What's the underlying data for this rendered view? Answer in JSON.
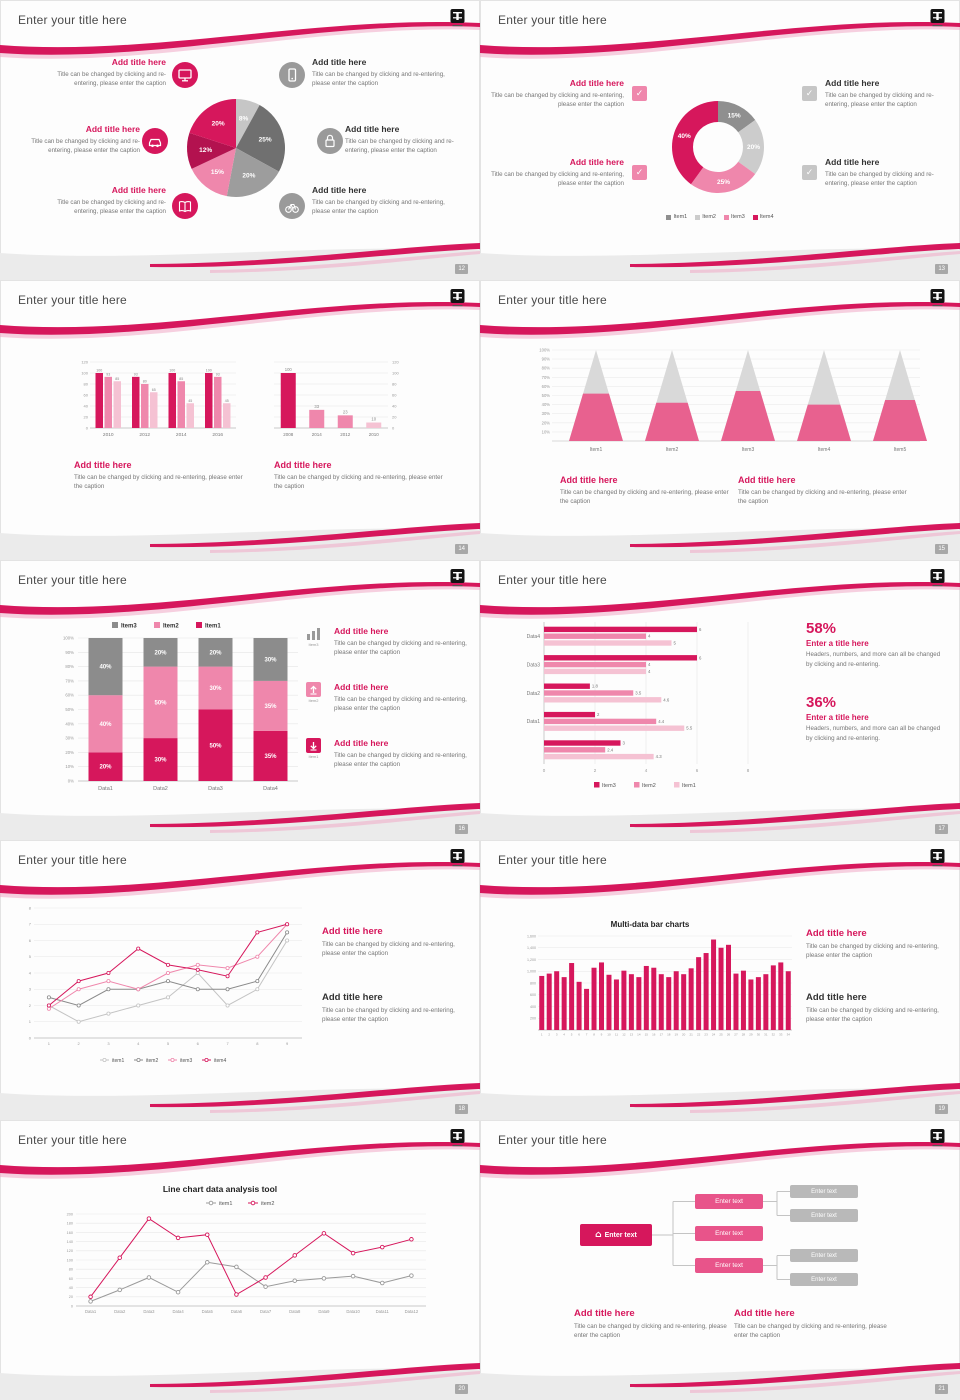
{
  "common": {
    "slide_title": "Enter your title here",
    "caption": "Title can be changed by clicking and re-entering, please enter the caption",
    "check": "✓",
    "home": "⌂"
  },
  "slides": [
    {
      "page": "12",
      "callouts": [
        {
          "title": "Add title here"
        },
        {
          "title": "Add title here"
        },
        {
          "title": "Add title here"
        },
        {
          "title": "Add title here"
        },
        {
          "title": "Add title here"
        },
        {
          "title": "Add title here"
        }
      ]
    },
    {
      "page": "13",
      "callouts": [
        {
          "title": "Add title here"
        },
        {
          "title": "Add title here"
        },
        {
          "title": "Add title here"
        },
        {
          "title": "Add title here"
        }
      ]
    },
    {
      "page": "14",
      "blocks": [
        {
          "title": "Add title here"
        },
        {
          "title": "Add title here"
        }
      ]
    },
    {
      "page": "15",
      "blocks": [
        {
          "title": "Add title here"
        },
        {
          "title": "Add title here"
        }
      ]
    },
    {
      "page": "16",
      "items": [
        {
          "tag": "Item3",
          "title": "Add title here"
        },
        {
          "tag": "Item2",
          "title": "Add title here"
        },
        {
          "tag": "Item1",
          "title": "Add title here"
        }
      ]
    },
    {
      "page": "17",
      "stats": [
        {
          "value": "58%",
          "title": "Enter a title here",
          "caption": "Headers, numbers, and more can all be changed by clicking and re-entering."
        },
        {
          "value": "36%",
          "title": "Enter a title here",
          "caption": "Headers, numbers, and more can all be changed by clicking and re-entering."
        }
      ]
    },
    {
      "page": "18",
      "blocks": [
        {
          "title": "Add title here"
        },
        {
          "title": "Add title here"
        }
      ]
    },
    {
      "page": "19",
      "blocks": [
        {
          "title": "Add title here"
        },
        {
          "title": "Add title here"
        }
      ]
    },
    {
      "page": "20"
    },
    {
      "page": "21",
      "diagram": {
        "root": "Enter text",
        "children": [
          "Enter text",
          "Enter text",
          "Enter text"
        ],
        "leaves": [
          "Enter text",
          "Enter text",
          "Enter text",
          "Enter text"
        ]
      },
      "blocks": [
        {
          "title": "Add title here"
        },
        {
          "title": "Add title here"
        }
      ]
    }
  ],
  "chart_data": [
    {
      "id": "pie12",
      "type": "pie",
      "values": [
        8,
        25,
        20,
        15,
        12,
        20
      ],
      "labels": [
        "8%",
        "25%",
        "20%",
        "15%",
        "12%",
        "20%"
      ],
      "colors": [
        "#c6c6c6",
        "#707070",
        "#9d9d9d",
        "#ef87ac",
        "#b3124f",
        "#d6175c"
      ]
    },
    {
      "id": "donut13",
      "type": "pie",
      "subtype": "donut",
      "values": [
        15,
        20,
        25,
        40
      ],
      "labels": [
        "15%",
        "20%",
        "25%",
        "40%"
      ],
      "colors": [
        "#8f8f8f",
        "#cccccc",
        "#ef87ac",
        "#d6175c"
      ],
      "legend": [
        {
          "label": "Item1",
          "color": "#8f8f8f"
        },
        {
          "label": "Item2",
          "color": "#cccccc"
        },
        {
          "label": "Item3",
          "color": "#ef87ac"
        },
        {
          "label": "Item4",
          "color": "#d6175c"
        }
      ]
    },
    {
      "id": "bars14a",
      "type": "bar",
      "categories": [
        "2010",
        "2012",
        "2014",
        "2016"
      ],
      "series": [
        {
          "color": "#d6175c",
          "values": [
            100,
            93,
            100,
            100
          ]
        },
        {
          "color": "#ef87ac",
          "values": [
            93,
            80,
            85,
            93
          ]
        },
        {
          "color": "#f5c2d3",
          "values": [
            85,
            65,
            45,
            45
          ]
        }
      ],
      "ylim": [
        0,
        120
      ],
      "yticks": [
        0,
        20,
        40,
        60,
        80,
        100,
        120
      ]
    },
    {
      "id": "bars14b",
      "type": "bar",
      "categories": [
        "2008",
        "2014",
        "2012",
        "2010"
      ],
      "values": [
        100,
        33,
        23,
        10
      ],
      "colors": [
        "#d6175c",
        "#ef87ac",
        "#ef87ac",
        "#f5c2d3"
      ],
      "ylim": [
        0,
        120
      ],
      "yticks": [
        0,
        20,
        40,
        60,
        80,
        100,
        120
      ],
      "axis_side": "right"
    },
    {
      "id": "cones15",
      "type": "cone",
      "categories": [
        "Item1",
        "Item2",
        "Item3",
        "Item4",
        "Item5"
      ],
      "values": [
        52,
        42,
        55,
        40,
        45
      ],
      "ylim": [
        0,
        100
      ],
      "yticks": [
        "10%",
        "20%",
        "30%",
        "40%",
        "50%",
        "60%",
        "70%",
        "80%",
        "90%",
        "100%"
      ],
      "color_bottom": "#e8618f",
      "color_top": "#d9d9d9"
    },
    {
      "id": "stack16",
      "type": "bar",
      "subtype": "stacked100",
      "categories": [
        "Data1",
        "Data2",
        "Data3",
        "Data4"
      ],
      "series": [
        {
          "name": "Item1",
          "color": "#d6175c",
          "values": [
            20,
            30,
            50,
            35
          ]
        },
        {
          "name": "Item2",
          "color": "#ef87ac",
          "values": [
            40,
            50,
            30,
            35
          ]
        },
        {
          "name": "Item3",
          "color": "#8c8c8c",
          "values": [
            40,
            20,
            20,
            30
          ]
        }
      ],
      "legend": [
        "Item3",
        "Item2",
        "Item1"
      ],
      "ylim": [
        0,
        100
      ]
    },
    {
      "id": "hbar17",
      "type": "bar",
      "subtype": "horizontal",
      "categories": [
        "Data4",
        "Data3",
        "Data2",
        "Data1",
        ""
      ],
      "series": [
        {
          "name": "Item3",
          "color": "#d6175c",
          "values": [
            6,
            6,
            1.8,
            2,
            3
          ]
        },
        {
          "name": "Item2",
          "color": "#ef87ac",
          "values": [
            4,
            4,
            3.5,
            4.4,
            2.4
          ]
        },
        {
          "name": "Item1",
          "color": "#f5c2d3",
          "values": [
            5,
            4,
            4.6,
            5.5,
            4.3
          ]
        }
      ],
      "xlim": [
        0,
        8
      ],
      "xticks": [
        0,
        2,
        4,
        6,
        8
      ],
      "legend": [
        "Item3",
        "Item2",
        "Item1"
      ]
    },
    {
      "id": "line18",
      "type": "line",
      "x": [
        "1",
        "2",
        "3",
        "4",
        "5",
        "6",
        "7",
        "8",
        "9"
      ],
      "series": [
        {
          "name": "item1",
          "color": "#c4c4c4",
          "values": [
            2,
            1,
            1.5,
            2,
            2.5,
            4,
            2,
            3,
            6
          ]
        },
        {
          "name": "item2",
          "color": "#8a8a8a",
          "values": [
            2.5,
            2,
            3,
            3,
            3.5,
            3,
            3,
            3.5,
            6.5
          ]
        },
        {
          "name": "item3",
          "color": "#ef87ac",
          "values": [
            1.8,
            3,
            3.5,
            3,
            4,
            4.5,
            4.3,
            5,
            7
          ]
        },
        {
          "name": "item4",
          "color": "#d6175c",
          "values": [
            2,
            3.5,
            4,
            5.5,
            4.5,
            4.2,
            3.8,
            6.5,
            7
          ]
        }
      ],
      "ylim": [
        0,
        8
      ],
      "yticks": [
        0,
        1,
        2,
        3,
        4,
        5,
        6,
        7,
        8
      ]
    },
    {
      "id": "bars19",
      "type": "bar",
      "title": "Multi-data bar charts",
      "categories": [
        "1",
        "2",
        "3",
        "4",
        "5",
        "6",
        "7",
        "8",
        "9",
        "10",
        "11",
        "12",
        "13",
        "14",
        "15",
        "16",
        "17",
        "18",
        "19",
        "20",
        "21",
        "22",
        "23",
        "24",
        "25",
        "26",
        "27",
        "28",
        "29",
        "30",
        "31",
        "32",
        "33",
        "34"
      ],
      "values": [
        920,
        960,
        1000,
        900,
        1140,
        820,
        700,
        1060,
        1150,
        940,
        860,
        1010,
        950,
        900,
        1090,
        1060,
        950,
        900,
        1000,
        950,
        1050,
        1240,
        1310,
        1540,
        1400,
        1450,
        960,
        1010,
        860,
        900,
        950,
        1100,
        1150,
        1000
      ],
      "color": "#d6175c",
      "ylim": [
        0,
        1600
      ],
      "yticks": [
        0,
        200,
        400,
        600,
        800,
        1000,
        1200,
        1400,
        1600
      ]
    },
    {
      "id": "line20",
      "type": "line",
      "title": "Line chart data analysis tool",
      "x": [
        "Data1",
        "Data2",
        "Data3",
        "Data4",
        "Data5",
        "Data6",
        "Data7",
        "Data8",
        "Data9",
        "Data10",
        "Data11",
        "Data12"
      ],
      "series": [
        {
          "name": "item1",
          "color": "#9a9a9a",
          "values": [
            10,
            35,
            62,
            30,
            95,
            85,
            42,
            55,
            60,
            65,
            50,
            66
          ]
        },
        {
          "name": "item2",
          "color": "#d6175c",
          "values": [
            20,
            105,
            190,
            148,
            155,
            25,
            62,
            110,
            158,
            115,
            128,
            145
          ]
        }
      ],
      "ylim": [
        0,
        200
      ],
      "yticks": [
        0,
        20,
        40,
        60,
        80,
        100,
        120,
        140,
        160,
        180,
        200
      ],
      "legend_position": "top"
    }
  ]
}
